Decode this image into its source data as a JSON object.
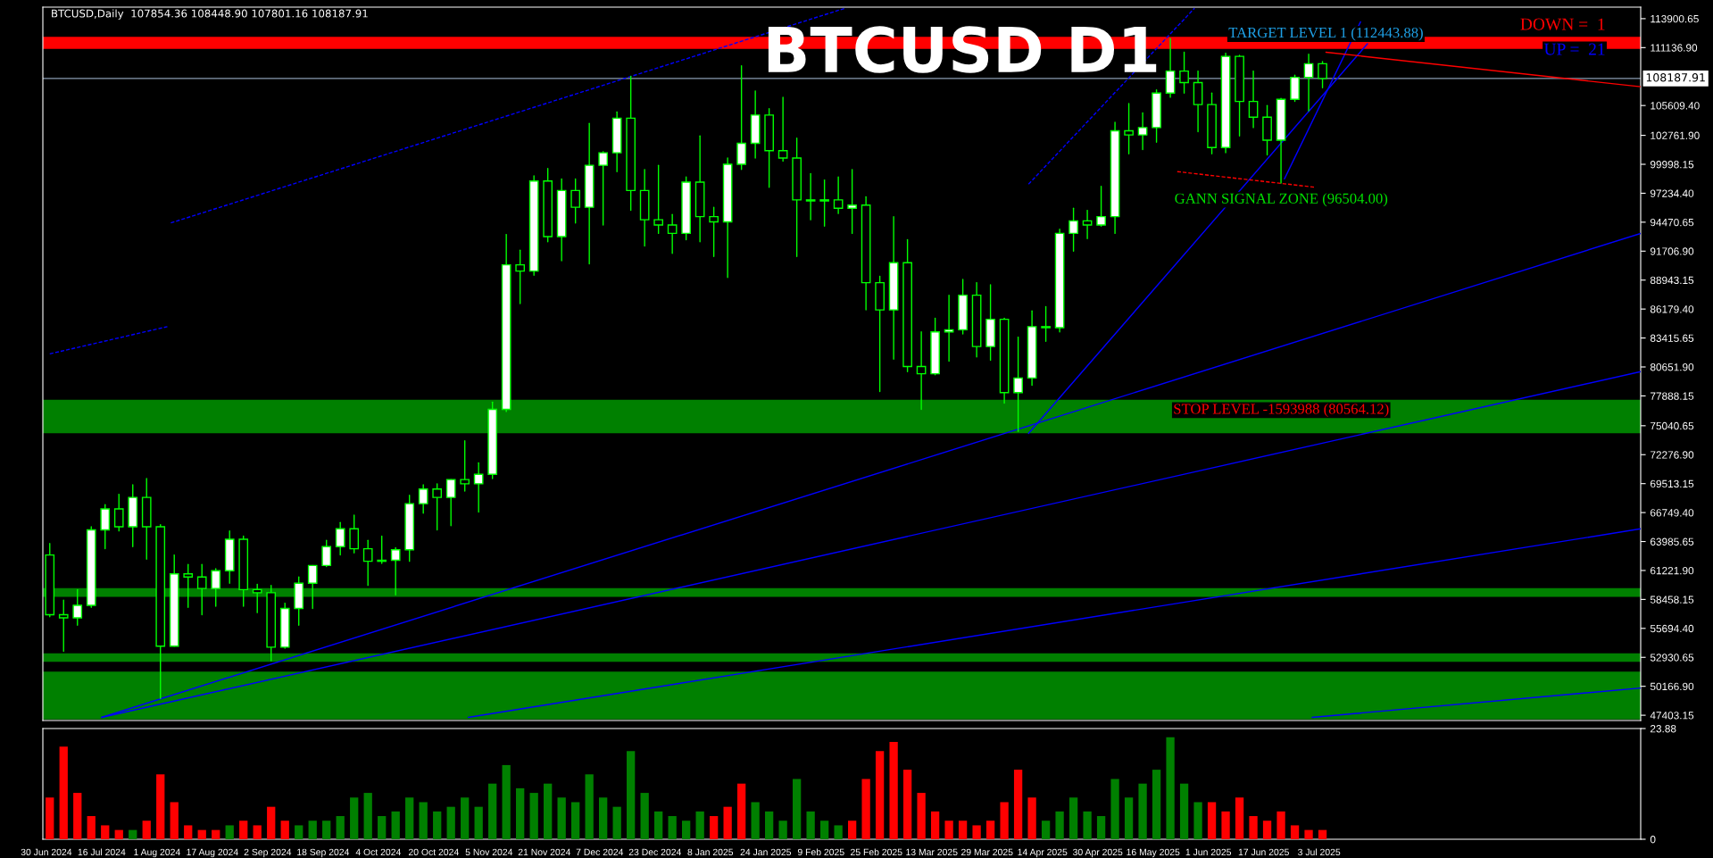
{
  "chart_data": [
    {
      "type": "candlestick",
      "title": "BTCUSD D1",
      "color": "#00ff00",
      "x": [
        "2024-07-01",
        "2024-07-05",
        "2024-07-09",
        "2024-07-13",
        "2024-07-17",
        "2024-07-21",
        "2024-07-25",
        "2024-07-29",
        "2024-08-02",
        "2024-08-06",
        "2024-08-10",
        "2024-08-14",
        "2024-08-18",
        "2024-08-22",
        "2024-08-26",
        "2024-08-30",
        "2024-09-03",
        "2024-09-07",
        "2024-09-11",
        "2024-09-15",
        "2024-09-19",
        "2024-09-23",
        "2024-09-27",
        "2024-10-01",
        "2024-10-05",
        "2024-10-09",
        "2024-10-13",
        "2024-10-17",
        "2024-10-21",
        "2024-10-25",
        "2024-10-29",
        "2024-11-02",
        "2024-11-06",
        "2024-11-10",
        "2024-11-14",
        "2024-11-18",
        "2024-11-22",
        "2024-11-26",
        "2024-11-30",
        "2024-12-04",
        "2024-12-08",
        "2024-12-12",
        "2024-12-16",
        "2024-12-20",
        "2024-12-24",
        "2024-12-28",
        "2025-01-01",
        "2025-01-05",
        "2025-01-09",
        "2025-01-13",
        "2025-01-17",
        "2025-01-21",
        "2025-01-25",
        "2025-01-29",
        "2025-02-02",
        "2025-02-06",
        "2025-02-10",
        "2025-02-14",
        "2025-02-18",
        "2025-02-22",
        "2025-02-26",
        "2025-03-02",
        "2025-03-06",
        "2025-03-10",
        "2025-03-14",
        "2025-03-18",
        "2025-03-22",
        "2025-03-26",
        "2025-03-30",
        "2025-04-03",
        "2025-04-07",
        "2025-04-11",
        "2025-04-15",
        "2025-04-19",
        "2025-04-23",
        "2025-04-27",
        "2025-05-01",
        "2025-05-05",
        "2025-05-09",
        "2025-05-13",
        "2025-05-17",
        "2025-05-21",
        "2025-05-25",
        "2025-05-29",
        "2025-06-02",
        "2025-06-06",
        "2025-06-10",
        "2025-06-14",
        "2025-06-18",
        "2025-06-22",
        "2025-06-26",
        "2025-06-30",
        "2025-07-04"
      ],
      "ohlc": [
        [
          62700,
          63800,
          56800,
          57000
        ],
        [
          57000,
          58400,
          53500,
          56700
        ],
        [
          56700,
          59400,
          56000,
          57900
        ],
        [
          57900,
          65400,
          57700,
          65100
        ],
        [
          65100,
          67500,
          63300,
          67100
        ],
        [
          67100,
          68500,
          65000,
          65400
        ],
        [
          65400,
          69400,
          63500,
          68200
        ],
        [
          68200,
          70000,
          62300,
          65400
        ],
        [
          65400,
          65600,
          49000,
          54000
        ],
        [
          54000,
          62700,
          54000,
          60900
        ],
        [
          60900,
          61800,
          57700,
          60600
        ],
        [
          60600,
          61800,
          57000,
          59500
        ],
        [
          59500,
          61400,
          57800,
          61200
        ],
        [
          61200,
          65000,
          60000,
          64200
        ],
        [
          64200,
          64500,
          57800,
          59400
        ],
        [
          59400,
          59900,
          57200,
          59100
        ],
        [
          59100,
          59800,
          52600,
          53900
        ],
        [
          53900,
          58100,
          53800,
          57600
        ],
        [
          57600,
          60600,
          56000,
          60000
        ],
        [
          60000,
          61700,
          57600,
          61700
        ],
        [
          61700,
          64100,
          61600,
          63500
        ],
        [
          63500,
          65800,
          62700,
          65200
        ],
        [
          65200,
          66500,
          62900,
          63300
        ],
        [
          63300,
          64100,
          59800,
          62100
        ],
        [
          62100,
          64500,
          61900,
          62200
        ],
        [
          62200,
          63400,
          58900,
          63200
        ],
        [
          63200,
          68400,
          62100,
          67600
        ],
        [
          67600,
          69400,
          66700,
          69000
        ],
        [
          69000,
          69500,
          65100,
          68200
        ],
        [
          68200,
          69900,
          65500,
          69900
        ],
        [
          69900,
          73600,
          68800,
          69500
        ],
        [
          69500,
          71500,
          66800,
          70400
        ],
        [
          70400,
          77300,
          70000,
          76600
        ],
        [
          76600,
          93300,
          76400,
          90400
        ],
        [
          90400,
          91800,
          86700,
          89800
        ],
        [
          89800,
          98900,
          89400,
          98400
        ],
        [
          98400,
          99600,
          92600,
          93100
        ],
        [
          93100,
          98600,
          90800,
          97500
        ],
        [
          97500,
          98600,
          94400,
          95900
        ],
        [
          95900,
          103900,
          90500,
          99900
        ],
        [
          99900,
          101200,
          94200,
          101100
        ],
        [
          101100,
          105000,
          99300,
          104400
        ],
        [
          104400,
          108400,
          95600,
          97500
        ],
        [
          97500,
          99500,
          92200,
          94700
        ],
        [
          94700,
          99900,
          93400,
          94200
        ],
        [
          94200,
          95200,
          91500,
          93400
        ],
        [
          93400,
          98800,
          92800,
          98300
        ],
        [
          98300,
          102700,
          92600,
          95000
        ],
        [
          95000,
          95900,
          91200,
          94500
        ],
        [
          94500,
          100600,
          89200,
          100000
        ],
        [
          100000,
          109400,
          99500,
          102000
        ],
        [
          102000,
          107000,
          100600,
          104700
        ],
        [
          104700,
          105300,
          97800,
          101300
        ],
        [
          101300,
          106400,
          100300,
          100600
        ],
        [
          100600,
          102500,
          91200,
          96600
        ],
        [
          96600,
          99100,
          94700,
          96500
        ],
        [
          96500,
          98500,
          94100,
          96600
        ],
        [
          96600,
          98800,
          95300,
          95800
        ],
        [
          95800,
          99500,
          93400,
          96100
        ],
        [
          96100,
          96900,
          86100,
          88700
        ],
        [
          88700,
          89300,
          78300,
          86100
        ],
        [
          86100,
          95000,
          81400,
          90600
        ],
        [
          90600,
          92800,
          80200,
          80700
        ],
        [
          80700,
          84000,
          76600,
          80000
        ],
        [
          80000,
          85300,
          79900,
          84000
        ],
        [
          84000,
          87500,
          81200,
          84200
        ],
        [
          84200,
          89000,
          83800,
          87500
        ],
        [
          87500,
          88700,
          81600,
          82600
        ],
        [
          82600,
          88500,
          81300,
          85200
        ],
        [
          85200,
          85300,
          77200,
          78200
        ],
        [
          78200,
          83500,
          74500,
          79600
        ],
        [
          79600,
          86000,
          78900,
          84500
        ],
        [
          84500,
          86400,
          83100,
          84400
        ],
        [
          84400,
          93800,
          84000,
          93400
        ],
        [
          93400,
          95800,
          91700,
          94600
        ],
        [
          94600,
          95600,
          92900,
          94200
        ],
        [
          94200,
          97900,
          94100,
          95000
        ],
        [
          95000,
          104000,
          93400,
          103200
        ],
        [
          103200,
          105800,
          101000,
          102800
        ],
        [
          102800,
          104900,
          101400,
          103500
        ],
        [
          103500,
          107100,
          102100,
          106800
        ],
        [
          106800,
          112000,
          106400,
          108900
        ],
        [
          108900,
          110700,
          106800,
          107800
        ],
        [
          107800,
          108900,
          103100,
          105700
        ],
        [
          105700,
          106800,
          101000,
          101600
        ],
        [
          101600,
          110600,
          101100,
          110300
        ],
        [
          110300,
          110400,
          102700,
          106000
        ],
        [
          106000,
          108900,
          103500,
          104500
        ],
        [
          104500,
          105600,
          100900,
          102300
        ],
        [
          102300,
          106300,
          98200,
          106200
        ],
        [
          106200,
          108500,
          106000,
          108300
        ],
        [
          108300,
          110500,
          105100,
          109600
        ],
        [
          109600,
          109800,
          107300,
          108187.91
        ]
      ],
      "series": [
        {
          "type": "line",
          "color": "#0000ff",
          "line_style": "dashed",
          "x": [
            "2024-08-05",
            "2025-02-16"
          ],
          "values": [
            94400,
            114900
          ]
        },
        {
          "type": "line",
          "color": "#0000ff",
          "line_style": "dashed",
          "x": [
            "2024-07-01",
            "2024-08-04"
          ],
          "values": [
            81900,
            84500
          ]
        },
        {
          "type": "line",
          "color": "#0000ff",
          "line_style": "solid",
          "x": [
            "2024-07-16",
            "2025-10-04"
          ],
          "values": [
            47200,
            93400
          ]
        },
        {
          "type": "line",
          "color": "#0000ff",
          "line_style": "solid",
          "x": [
            "2024-07-16",
            "2025-10-04"
          ],
          "values": [
            47200,
            80200
          ]
        },
        {
          "type": "line",
          "color": "#0000ff",
          "line_style": "solid",
          "x": [
            "2024-10-30",
            "2025-10-04"
          ],
          "values": [
            47200,
            65200
          ]
        },
        {
          "type": "line",
          "color": "#0000ff",
          "line_style": "solid",
          "x": [
            "2025-07-01",
            "2025-10-04"
          ],
          "values": [
            47200,
            50000
          ]
        },
        {
          "type": "line",
          "color": "#0000ff",
          "line_style": "solid",
          "x": [
            "2025-04-10",
            "2025-07-17"
          ],
          "values": [
            74300,
            111500
          ]
        },
        {
          "type": "line",
          "color": "#0000ff",
          "line_style": "solid",
          "x": [
            "2025-06-23",
            "2025-07-15"
          ],
          "values": [
            98600,
            113600
          ]
        },
        {
          "type": "line",
          "color": "#0000ff",
          "line_style": "dashed",
          "x": [
            "2025-04-10",
            "2025-05-28"
          ],
          "values": [
            98100,
            114900
          ]
        },
        {
          "type": "line",
          "color": "#ff0000",
          "line_style": "solid",
          "x": [
            "2025-07-05",
            "2025-10-04"
          ],
          "values": [
            110700,
            107400
          ]
        },
        {
          "type": "line",
          "color": "#ff0000",
          "line_style": "dashed",
          "x": [
            "2025-05-23",
            "2025-07-02"
          ],
          "values": [
            99300,
            97800
          ]
        }
      ],
      "bands": [
        {
          "axis": "y",
          "from": 111020,
          "to": 112160,
          "color": "#ff0000"
        },
        {
          "axis": "y",
          "from": 74320,
          "to": 77520,
          "color": "#008000"
        },
        {
          "axis": "y",
          "from": 58700,
          "to": 59530,
          "color": "#008000"
        },
        {
          "axis": "y",
          "from": 52500,
          "to": 53320,
          "color": "#008000"
        },
        {
          "axis": "y",
          "from": 47000,
          "to": 51570,
          "color": "#008000"
        }
      ],
      "ref_lines": [
        {
          "axis": "y",
          "value": 108187.91,
          "label": "108187.91",
          "color": "#8a9bb0"
        }
      ],
      "annotations": [
        "BTCUSD,Daily  107854.36 108448.90 107801.16 108187.91",
        {
          "text": "TARGET LEVEL 1 (112443.88)",
          "x": "2025-07-05",
          "y": 112443.88
        },
        "GANN SIGNAL ZONE (96504.00)",
        "STOP LEVEL -1593988 (80564.12)",
        "DOWN =  1",
        "UP =  21"
      ],
      "xlim": [
        "2024-06-29",
        "2025-10-04"
      ],
      "ylim": [
        46900,
        115000
      ],
      "yticks": [
        {
          "value": 113900.65,
          "label": "113900.65"
        },
        {
          "value": 111136.9,
          "label": "111136.90"
        },
        {
          "value": 105609.4,
          "label": "105609.40"
        },
        {
          "value": 102761.9,
          "label": "102761.90"
        },
        {
          "value": 99998.15,
          "label": "99998.15"
        },
        {
          "value": 97234.4,
          "label": "97234.40"
        },
        {
          "value": 94470.65,
          "label": "94470.65"
        },
        {
          "value": 91706.9,
          "label": "91706.90"
        },
        {
          "value": 88943.15,
          "label": "88943.15"
        },
        {
          "value": 86179.4,
          "label": "86179.40"
        },
        {
          "value": 83415.65,
          "label": "83415.65"
        },
        {
          "value": 80651.9,
          "label": "80651.90"
        },
        {
          "value": 77888.15,
          "label": "77888.15"
        },
        {
          "value": 75040.65,
          "label": "75040.65"
        },
        {
          "value": 72276.9,
          "label": "72276.90"
        },
        {
          "value": 69513.15,
          "label": "69513.15"
        },
        {
          "value": 66749.4,
          "label": "66749.40"
        },
        {
          "value": 63985.65,
          "label": "63985.65"
        },
        {
          "value": 61221.9,
          "label": "61221.90"
        },
        {
          "value": 58458.15,
          "label": "58458.15"
        },
        {
          "value": 55694.4,
          "label": "55694.40"
        },
        {
          "value": 52930.65,
          "label": "52930.65"
        },
        {
          "value": 50166.9,
          "label": "50166.90"
        },
        {
          "value": 47403.15,
          "label": "47403.15"
        }
      ],
      "tick_labels": "y",
      "grid": false,
      "legend": false
    },
    {
      "type": "bar",
      "x": [
        "2024-07-01",
        "2024-07-05",
        "2024-07-09",
        "2024-07-13",
        "2024-07-17",
        "2024-07-21",
        "2024-07-25",
        "2024-07-29",
        "2024-08-02",
        "2024-08-06",
        "2024-08-10",
        "2024-08-14",
        "2024-08-18",
        "2024-08-22",
        "2024-08-26",
        "2024-08-30",
        "2024-09-03",
        "2024-09-07",
        "2024-09-11",
        "2024-09-15",
        "2024-09-19",
        "2024-09-23",
        "2024-09-27",
        "2024-10-01",
        "2024-10-05",
        "2024-10-09",
        "2024-10-13",
        "2024-10-17",
        "2024-10-21",
        "2024-10-25",
        "2024-10-29",
        "2024-11-02",
        "2024-11-06",
        "2024-11-10",
        "2024-11-14",
        "2024-11-18",
        "2024-11-22",
        "2024-11-26",
        "2024-11-30",
        "2024-12-04",
        "2024-12-08",
        "2024-12-12",
        "2024-12-16",
        "2024-12-20",
        "2024-12-24",
        "2024-12-28",
        "2025-01-01",
        "2025-01-05",
        "2025-01-09",
        "2025-01-13",
        "2025-01-17",
        "2025-01-21",
        "2025-01-25",
        "2025-01-29",
        "2025-02-02",
        "2025-02-06",
        "2025-02-10",
        "2025-02-14",
        "2025-02-18",
        "2025-02-22",
        "2025-02-26",
        "2025-03-02",
        "2025-03-06",
        "2025-03-10",
        "2025-03-14",
        "2025-03-18",
        "2025-03-22",
        "2025-03-26",
        "2025-03-30",
        "2025-04-03",
        "2025-04-07",
        "2025-04-11",
        "2025-04-15",
        "2025-04-19",
        "2025-04-23",
        "2025-04-27",
        "2025-05-01",
        "2025-05-05",
        "2025-05-09",
        "2025-05-13",
        "2025-05-17",
        "2025-05-21",
        "2025-05-25",
        "2025-05-29",
        "2025-06-02",
        "2025-06-06",
        "2025-06-10",
        "2025-06-14",
        "2025-06-18",
        "2025-06-22",
        "2025-06-26",
        "2025-06-30",
        "2025-07-04"
      ],
      "values": [
        9,
        20,
        10,
        5,
        3,
        2,
        2,
        4,
        14,
        8,
        3,
        2,
        2,
        3,
        4,
        3,
        7,
        4,
        3,
        4,
        4,
        5,
        9,
        10,
        5,
        6,
        9,
        8,
        6,
        7,
        9,
        7,
        12,
        16,
        11,
        10,
        12,
        9,
        8,
        14,
        9,
        7,
        19,
        10,
        6,
        5,
        4,
        6,
        5,
        7,
        12,
        8,
        6,
        4,
        13,
        6,
        4,
        3,
        4,
        13,
        19,
        21,
        15,
        10,
        6,
        4,
        4,
        3,
        4,
        8,
        15,
        9,
        4,
        6,
        9,
        6,
        5,
        13,
        9,
        12,
        15,
        22,
        12,
        8,
        8,
        6,
        9,
        5,
        4,
        6,
        3,
        2,
        2
      ],
      "colors": [
        "#ff0000",
        "#ff0000",
        "#ff0000",
        "#ff0000",
        "#ff0000",
        "#ff0000",
        "#008000",
        "#ff0000",
        "#ff0000",
        "#ff0000",
        "#ff0000",
        "#ff0000",
        "#ff0000",
        "#008000",
        "#ff0000",
        "#ff0000",
        "#ff0000",
        "#ff0000",
        "#008000",
        "#008000",
        "#008000",
        "#008000",
        "#008000",
        "#008000",
        "#008000",
        "#008000",
        "#008000",
        "#008000",
        "#008000",
        "#008000",
        "#008000",
        "#008000",
        "#008000",
        "#008000",
        "#008000",
        "#008000",
        "#008000",
        "#008000",
        "#008000",
        "#008000",
        "#008000",
        "#008000",
        "#008000",
        "#008000",
        "#008000",
        "#008000",
        "#008000",
        "#008000",
        "#ff0000",
        "#ff0000",
        "#ff0000",
        "#008000",
        "#008000",
        "#008000",
        "#008000",
        "#008000",
        "#008000",
        "#008000",
        "#ff0000",
        "#ff0000",
        "#ff0000",
        "#ff0000",
        "#ff0000",
        "#ff0000",
        "#ff0000",
        "#ff0000",
        "#ff0000",
        "#ff0000",
        "#ff0000",
        "#ff0000",
        "#ff0000",
        "#ff0000",
        "#008000",
        "#008000",
        "#008000",
        "#008000",
        "#008000",
        "#008000",
        "#008000",
        "#008000",
        "#008000",
        "#008000",
        "#008000",
        "#008000",
        "#ff0000",
        "#ff0000",
        "#ff0000",
        "#ff0000",
        "#ff0000",
        "#ff0000",
        "#ff0000",
        "#ff0000",
        "#ff0000"
      ],
      "xlim": [
        "2024-06-29",
        "2025-10-04"
      ],
      "ylim": [
        0,
        23.88
      ],
      "yticks": [
        0,
        23.88
      ],
      "xticks": [
        {
          "value": "2024-06-30",
          "label": "30 Jun 2024"
        },
        {
          "value": "2024-07-16",
          "label": "16 Jul 2024"
        },
        {
          "value": "2024-08-01",
          "label": "1 Aug 2024"
        },
        {
          "value": "2024-08-17",
          "label": "17 Aug 2024"
        },
        {
          "value": "2024-09-02",
          "label": "2 Sep 2024"
        },
        {
          "value": "2024-09-18",
          "label": "18 Sep 2024"
        },
        {
          "value": "2024-10-04",
          "label": "4 Oct 2024"
        },
        {
          "value": "2024-10-20",
          "label": "20 Oct 2024"
        },
        {
          "value": "2024-11-05",
          "label": "5 Nov 2024"
        },
        {
          "value": "2024-11-21",
          "label": "21 Nov 2024"
        },
        {
          "value": "2024-12-07",
          "label": "7 Dec 2024"
        },
        {
          "value": "2024-12-23",
          "label": "23 Dec 2024"
        },
        {
          "value": "2025-01-08",
          "label": "8 Jan 2025"
        },
        {
          "value": "2025-01-24",
          "label": "24 Jan 2025"
        },
        {
          "value": "2025-02-09",
          "label": "9 Feb 2025"
        },
        {
          "value": "2025-02-25",
          "label": "25 Feb 2025"
        },
        {
          "value": "2025-03-13",
          "label": "13 Mar 2025"
        },
        {
          "value": "2025-03-29",
          "label": "29 Mar 2025"
        },
        {
          "value": "2025-04-14",
          "label": "14 Apr 2025"
        },
        {
          "value": "2025-04-30",
          "label": "30 Apr 2025"
        },
        {
          "value": "2025-05-16",
          "label": "16 May 2025"
        },
        {
          "value": "2025-06-01",
          "label": "1 Jun 2025"
        },
        {
          "value": "2025-06-17",
          "label": "17 Jun 2025"
        },
        {
          "value": "2025-07-03",
          "label": "3 Jul 2025"
        }
      ],
      "grid": false,
      "legend": false
    }
  ]
}
